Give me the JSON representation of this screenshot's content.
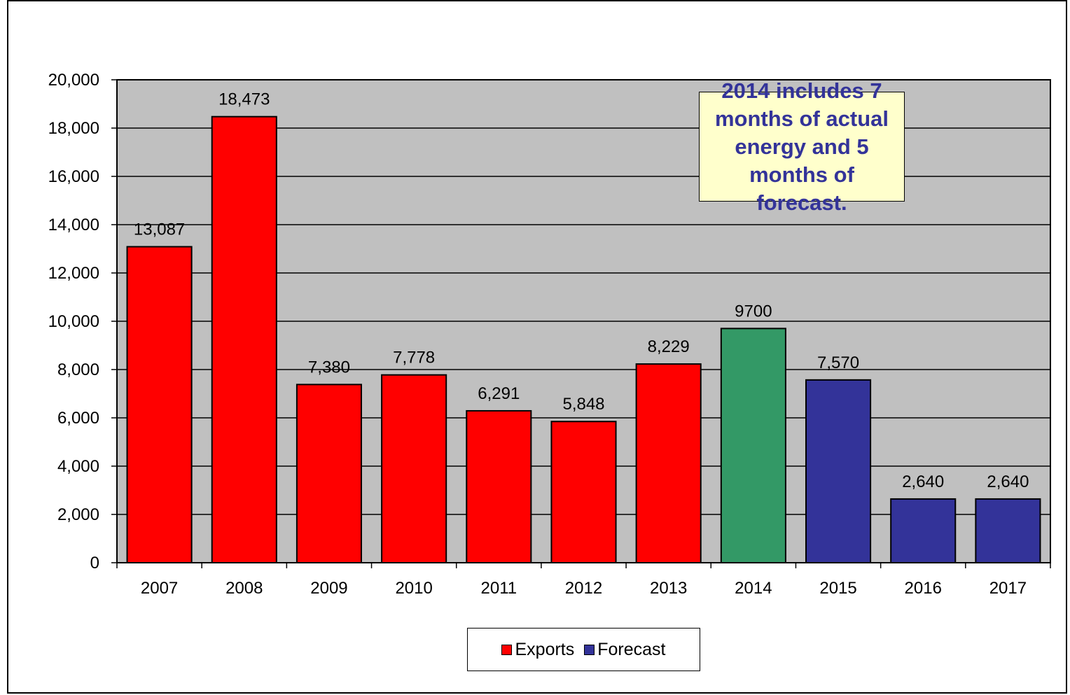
{
  "chart_data": {
    "type": "bar",
    "categories": [
      "2007",
      "2008",
      "2009",
      "2010",
      "2011",
      "2012",
      "2013",
      "2014",
      "2015",
      "2016",
      "2017"
    ],
    "values": [
      13087,
      18473,
      7380,
      7778,
      6291,
      5848,
      8229,
      9700,
      7570,
      2640,
      2640
    ],
    "value_labels": [
      "13,087",
      "18,473",
      "7,380",
      "7,778",
      "6,291",
      "5,848",
      "8,229",
      "9700",
      "7,570",
      "2,640",
      "2,640"
    ],
    "bar_colors": [
      "#ff0000",
      "#ff0000",
      "#ff0000",
      "#ff0000",
      "#ff0000",
      "#ff0000",
      "#ff0000",
      "#339966",
      "#333399",
      "#333399",
      "#333399"
    ],
    "ylim": [
      0,
      20000
    ],
    "yticks": [
      0,
      2000,
      4000,
      6000,
      8000,
      10000,
      12000,
      14000,
      16000,
      18000,
      20000
    ],
    "ytick_labels": [
      "0",
      "2,000",
      "4,000",
      "6,000",
      "8,000",
      "10,000",
      "12,000",
      "14,000",
      "16,000",
      "18,000",
      "20,000"
    ],
    "grid": true,
    "plot_background": "#c0c0c0",
    "legend_position": "bottom",
    "legend": [
      {
        "label": "Exports",
        "color": "#ff0000"
      },
      {
        "label": "Forecast",
        "color": "#333399"
      }
    ],
    "annotation": {
      "text": "2014 includes 7 months of actual energy and 5 months of forecast.",
      "color": "#333399",
      "background": "#ffffcc"
    }
  }
}
